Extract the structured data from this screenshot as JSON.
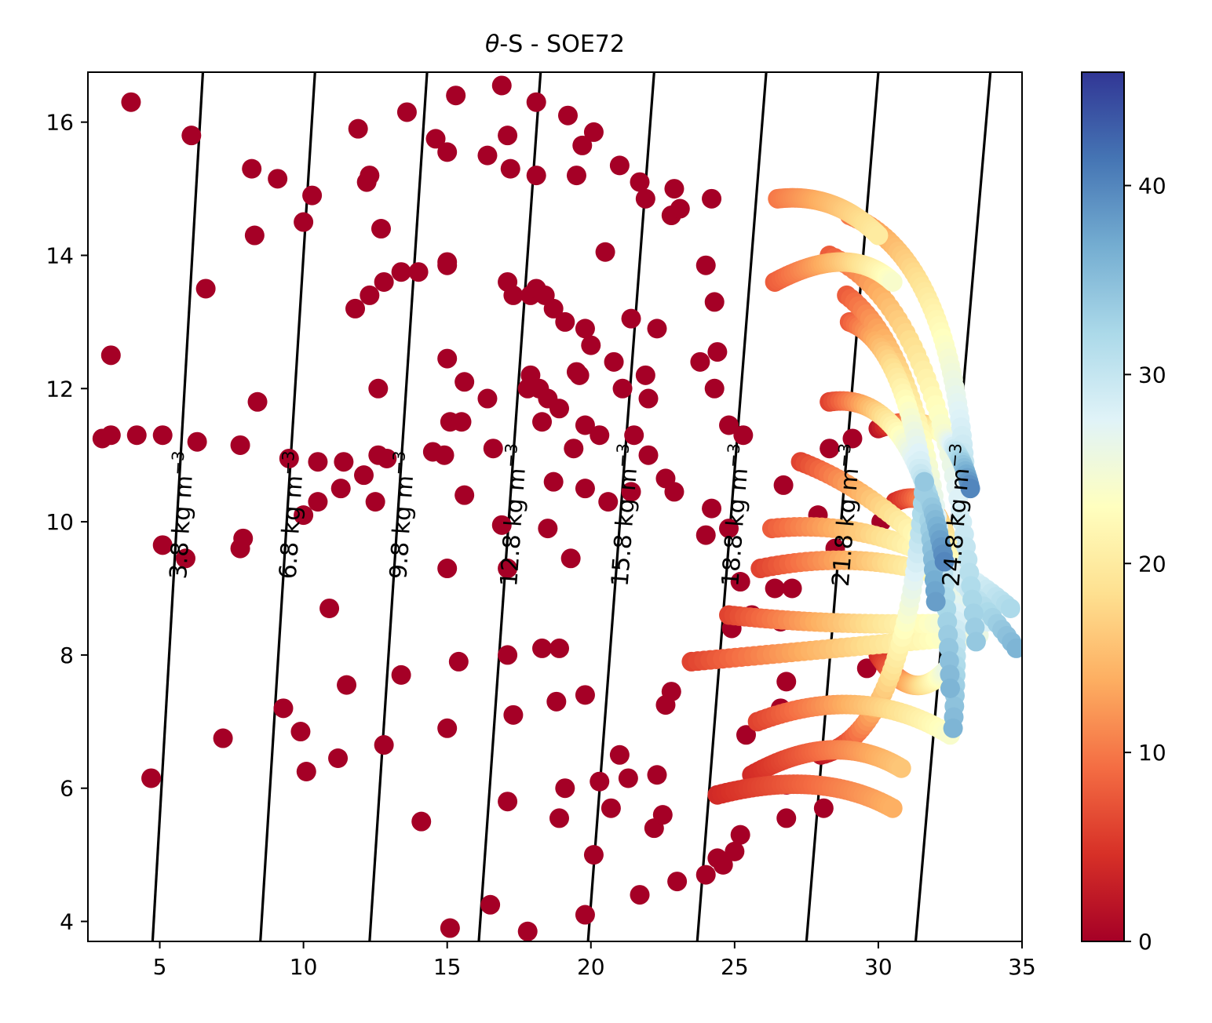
{
  "chart_data": {
    "type": "scatter",
    "title": "θ-S - SOE72",
    "title_symbol": "θ",
    "title_rest": "-S - SOE72",
    "xlim": [
      2.5,
      35.0
    ],
    "ylim": [
      3.7,
      16.75
    ],
    "x_ticks": [
      5,
      10,
      15,
      20,
      25,
      30,
      35
    ],
    "y_ticks": [
      4,
      6,
      8,
      10,
      12,
      14,
      16
    ],
    "colorbar": {
      "colormap": "RdYlBu",
      "range": [
        0,
        46
      ],
      "ticks": [
        0,
        10,
        20,
        30,
        40
      ],
      "colors": [
        "#a50026",
        "#d73027",
        "#f46d43",
        "#fdae61",
        "#fee090",
        "#ffffbf",
        "#e0f3f8",
        "#abd9e9",
        "#74add1",
        "#4575b4",
        "#313695"
      ]
    },
    "isopycnals": [
      {
        "label": "3.8 kg m",
        "points": [
          [
            4.75,
            3.7
          ],
          [
            6.5,
            16.75
          ]
        ]
      },
      {
        "label": "6.8 kg m",
        "points": [
          [
            8.5,
            3.7
          ],
          [
            10.4,
            16.75
          ]
        ]
      },
      {
        "label": "9.8 kg m",
        "points": [
          [
            12.3,
            3.7
          ],
          [
            14.3,
            16.75
          ]
        ]
      },
      {
        "label": "12.8 kg m",
        "points": [
          [
            16.1,
            3.7
          ],
          [
            18.25,
            16.75
          ]
        ]
      },
      {
        "label": "15.8 kg m",
        "points": [
          [
            19.9,
            3.7
          ],
          [
            22.2,
            16.75
          ]
        ]
      },
      {
        "label": "18.8 kg m",
        "points": [
          [
            23.7,
            3.7
          ],
          [
            26.1,
            16.75
          ]
        ]
      },
      {
        "label": "21.8 kg m",
        "points": [
          [
            27.5,
            3.7
          ],
          [
            30.0,
            16.75
          ]
        ]
      },
      {
        "label": "24.8 kg m",
        "points": [
          [
            31.3,
            3.7
          ],
          [
            33.9,
            16.75
          ]
        ]
      }
    ],
    "isopycnal_label_unit_exponent": "−3",
    "scatter_points": [
      [
        3.0,
        11.25,
        0
      ],
      [
        3.3,
        11.3,
        0
      ],
      [
        4.2,
        11.3,
        0
      ],
      [
        5.1,
        11.3,
        0
      ],
      [
        6.3,
        11.2,
        0
      ],
      [
        4.0,
        16.3,
        0
      ],
      [
        6.1,
        15.8,
        0
      ],
      [
        3.3,
        12.5,
        0
      ],
      [
        6.6,
        13.5,
        0
      ],
      [
        5.1,
        9.65,
        0
      ],
      [
        5.9,
        9.45,
        0
      ],
      [
        4.7,
        6.15,
        0
      ],
      [
        7.2,
        6.75,
        0
      ],
      [
        7.8,
        9.6,
        0
      ],
      [
        7.9,
        9.75,
        0
      ],
      [
        7.8,
        11.15,
        0
      ],
      [
        8.2,
        15.3,
        0
      ],
      [
        8.3,
        14.3,
        0
      ],
      [
        8.4,
        11.8,
        0
      ],
      [
        9.1,
        15.15,
        0
      ],
      [
        10.0,
        14.5,
        0
      ],
      [
        10.3,
        14.9,
        0
      ],
      [
        9.5,
        10.95,
        0
      ],
      [
        10.5,
        10.9,
        0
      ],
      [
        11.4,
        10.9,
        0
      ],
      [
        10.0,
        10.1,
        0
      ],
      [
        10.5,
        10.3,
        0
      ],
      [
        11.3,
        10.5,
        0
      ],
      [
        9.3,
        7.2,
        0
      ],
      [
        9.9,
        6.85,
        0
      ],
      [
        10.1,
        6.25,
        0
      ],
      [
        10.9,
        8.7,
        0
      ],
      [
        11.2,
        6.45,
        0
      ],
      [
        11.5,
        7.55,
        0
      ],
      [
        11.9,
        15.9,
        0
      ],
      [
        12.2,
        15.1,
        0
      ],
      [
        12.3,
        15.2,
        0
      ],
      [
        12.7,
        14.4,
        0
      ],
      [
        11.8,
        13.2,
        0
      ],
      [
        12.3,
        13.4,
        0
      ],
      [
        12.6,
        12.0,
        0
      ],
      [
        12.1,
        10.7,
        0
      ],
      [
        12.5,
        10.3,
        0
      ],
      [
        12.6,
        11.0,
        0
      ],
      [
        12.9,
        10.95,
        0
      ],
      [
        12.8,
        13.6,
        0
      ],
      [
        13.4,
        13.75,
        0
      ],
      [
        13.6,
        16.15,
        0
      ],
      [
        13.4,
        7.7,
        0
      ],
      [
        12.8,
        6.65,
        0
      ],
      [
        14.1,
        5.5,
        0
      ],
      [
        14.0,
        13.75,
        0
      ],
      [
        14.5,
        11.05,
        0
      ],
      [
        14.9,
        11.0,
        0
      ],
      [
        14.6,
        15.75,
        0
      ],
      [
        15.0,
        15.55,
        0
      ],
      [
        15.3,
        16.4,
        0
      ],
      [
        15.0,
        13.85,
        0
      ],
      [
        15.0,
        13.9,
        0
      ],
      [
        15.0,
        12.45,
        0
      ],
      [
        15.1,
        11.5,
        0
      ],
      [
        15.5,
        11.5,
        0
      ],
      [
        15.6,
        12.1,
        0
      ],
      [
        15.6,
        10.4,
        0
      ],
      [
        15.0,
        9.3,
        0
      ],
      [
        15.0,
        6.9,
        0
      ],
      [
        15.4,
        7.9,
        0
      ],
      [
        15.1,
        3.9,
        0
      ],
      [
        16.5,
        4.25,
        0
      ],
      [
        17.1,
        5.8,
        0
      ],
      [
        17.3,
        7.1,
        0
      ],
      [
        17.1,
        8.0,
        0
      ],
      [
        17.1,
        9.3,
        0
      ],
      [
        16.9,
        9.95,
        0
      ],
      [
        16.6,
        11.1,
        0
      ],
      [
        16.4,
        11.85,
        0
      ],
      [
        16.4,
        15.5,
        0
      ],
      [
        17.1,
        15.8,
        0
      ],
      [
        17.2,
        15.3,
        0
      ],
      [
        16.9,
        16.55,
        0
      ],
      [
        18.1,
        16.3,
        0
      ],
      [
        18.1,
        15.2,
        0
      ],
      [
        17.1,
        13.6,
        0
      ],
      [
        17.3,
        13.4,
        0
      ],
      [
        17.9,
        13.4,
        0
      ],
      [
        18.1,
        13.5,
        0
      ],
      [
        18.4,
        13.4,
        0
      ],
      [
        18.7,
        13.2,
        0
      ],
      [
        17.9,
        12.2,
        0
      ],
      [
        17.8,
        12.0,
        0
      ],
      [
        18.2,
        12.0,
        0
      ],
      [
        18.5,
        11.85,
        0
      ],
      [
        18.9,
        11.7,
        0
      ],
      [
        18.3,
        11.5,
        0
      ],
      [
        18.5,
        9.9,
        0
      ],
      [
        18.7,
        10.6,
        0
      ],
      [
        19.1,
        13.0,
        0
      ],
      [
        19.2,
        16.1,
        0
      ],
      [
        19.7,
        15.65,
        0
      ],
      [
        20.1,
        15.85,
        0
      ],
      [
        19.5,
        15.2,
        0
      ],
      [
        19.5,
        12.25,
        0
      ],
      [
        19.6,
        12.2,
        0
      ],
      [
        19.8,
        12.9,
        0
      ],
      [
        20.0,
        12.65,
        0
      ],
      [
        19.8,
        11.45,
        0
      ],
      [
        19.4,
        11.1,
        0
      ],
      [
        19.8,
        10.5,
        0
      ],
      [
        19.3,
        9.45,
        0
      ],
      [
        18.3,
        8.1,
        0
      ],
      [
        18.9,
        8.1,
        0
      ],
      [
        18.8,
        7.3,
        0
      ],
      [
        19.8,
        7.4,
        0
      ],
      [
        19.1,
        6.0,
        0
      ],
      [
        18.9,
        5.55,
        0
      ],
      [
        19.8,
        4.1,
        0
      ],
      [
        17.8,
        3.85,
        0
      ],
      [
        20.3,
        6.1,
        0
      ],
      [
        20.1,
        5.0,
        0
      ],
      [
        21.0,
        6.5,
        0
      ],
      [
        20.7,
        5.7,
        0
      ],
      [
        21.3,
        6.15,
        0
      ],
      [
        21.7,
        4.4,
        0
      ],
      [
        22.2,
        5.4,
        0
      ],
      [
        22.5,
        5.6,
        0
      ],
      [
        22.3,
        6.2,
        0
      ],
      [
        22.6,
        7.25,
        0
      ],
      [
        22.8,
        7.45,
        0
      ],
      [
        23.0,
        4.6,
        0
      ],
      [
        21.0,
        15.35,
        0
      ],
      [
        21.7,
        15.1,
        0
      ],
      [
        21.9,
        14.85,
        0
      ],
      [
        20.5,
        14.05,
        0
      ],
      [
        21.4,
        13.05,
        0
      ],
      [
        21.1,
        12.0,
        0
      ],
      [
        20.8,
        12.4,
        0
      ],
      [
        21.9,
        12.2,
        0
      ],
      [
        22.0,
        11.85,
        0
      ],
      [
        21.5,
        11.3,
        0
      ],
      [
        22.0,
        11.0,
        0
      ],
      [
        21.4,
        10.45,
        0
      ],
      [
        20.6,
        10.3,
        0
      ],
      [
        20.3,
        11.3,
        0
      ],
      [
        22.3,
        12.9,
        0
      ],
      [
        22.6,
        10.65,
        0
      ],
      [
        22.9,
        10.45,
        0
      ],
      [
        22.9,
        15.0,
        0
      ],
      [
        22.8,
        14.6,
        0
      ],
      [
        23.1,
        14.7,
        0
      ],
      [
        24.2,
        14.85,
        0
      ],
      [
        24.0,
        13.85,
        0
      ],
      [
        24.3,
        13.3,
        0
      ],
      [
        23.8,
        12.4,
        0
      ],
      [
        24.4,
        12.55,
        0
      ],
      [
        24.3,
        12.0,
        0
      ],
      [
        24.8,
        11.45,
        0
      ],
      [
        25.3,
        11.3,
        0
      ],
      [
        24.2,
        10.2,
        0
      ],
      [
        24.0,
        9.8,
        0
      ],
      [
        24.8,
        9.9,
        0
      ],
      [
        25.2,
        9.1,
        0
      ],
      [
        25.6,
        8.6,
        0
      ],
      [
        24.9,
        8.4,
        0
      ],
      [
        25.4,
        6.8,
        0
      ],
      [
        25.2,
        5.3,
        0
      ],
      [
        25.0,
        5.05,
        0
      ],
      [
        24.6,
        4.85,
        0
      ],
      [
        24.4,
        4.95,
        0
      ],
      [
        24.0,
        4.7,
        0
      ],
      [
        26.4,
        9.0,
        0
      ],
      [
        26.7,
        10.55,
        0
      ],
      [
        27.0,
        9.0,
        0
      ],
      [
        26.6,
        8.5,
        0
      ],
      [
        26.8,
        7.6,
        0
      ],
      [
        26.6,
        7.2,
        0
      ],
      [
        26.8,
        6.05,
        0
      ],
      [
        26.8,
        5.55,
        0
      ],
      [
        28.5,
        9.6,
        0
      ],
      [
        27.9,
        10.1,
        0
      ],
      [
        28.3,
        11.1,
        0
      ],
      [
        28.1,
        5.7,
        0
      ],
      [
        29.6,
        7.8,
        0
      ],
      [
        30.1,
        10.0,
        0
      ],
      [
        29.1,
        11.25,
        0
      ]
    ],
    "tracks": [
      {
        "cmin": 4,
        "cmax": 14,
        "start": [
          24.4,
          5.9
        ],
        "end": [
          30.5,
          5.7
        ],
        "bulge": [
          28.0,
          6.3
        ]
      },
      {
        "cmin": 4,
        "cmax": 16,
        "start": [
          25.6,
          6.2
        ],
        "end": [
          30.8,
          6.3
        ],
        "bulge": [
          28.5,
          6.9
        ]
      },
      {
        "cmin": 6,
        "cmax": 24,
        "start": [
          25.8,
          7.0
        ],
        "end": [
          32.5,
          6.8
        ],
        "bulge": [
          29.5,
          7.6
        ]
      },
      {
        "cmin": 6,
        "cmax": 26,
        "start": [
          23.5,
          7.9
        ],
        "end": [
          33.5,
          8.3
        ],
        "bulge": [
          28.5,
          8.1
        ]
      },
      {
        "cmin": 6,
        "cmax": 28,
        "start": [
          24.8,
          8.6
        ],
        "end": [
          33.8,
          8.5
        ],
        "bulge": [
          29.0,
          8.4
        ]
      },
      {
        "cmin": 6,
        "cmax": 30,
        "start": [
          25.9,
          9.3
        ],
        "end": [
          34.3,
          8.8
        ],
        "bulge": [
          30.5,
          9.7
        ]
      },
      {
        "cmin": 8,
        "cmax": 32,
        "start": [
          26.3,
          9.9
        ],
        "end": [
          34.6,
          8.7
        ],
        "bulge": [
          30.8,
          10.1
        ]
      },
      {
        "cmin": 6,
        "cmax": 36,
        "start": [
          27.3,
          10.9
        ],
        "end": [
          34.8,
          8.1
        ],
        "bulge": [
          31.0,
          10.3
        ]
      },
      {
        "cmin": 6,
        "cmax": 40,
        "start": [
          28.3,
          11.8
        ],
        "end": [
          32.3,
          9.4
        ],
        "bulge": [
          31.2,
          12.0
        ]
      },
      {
        "cmin": 8,
        "cmax": 38,
        "start": [
          29.0,
          13.0
        ],
        "end": [
          32.0,
          8.8
        ],
        "bulge": [
          31.5,
          12.6
        ]
      },
      {
        "cmin": 8,
        "cmax": 36,
        "start": [
          28.9,
          13.4
        ],
        "end": [
          32.5,
          7.5
        ],
        "bulge": [
          32.2,
          12.3
        ]
      },
      {
        "cmin": 8,
        "cmax": 34,
        "start": [
          28.3,
          14.0
        ],
        "end": [
          33.4,
          8.2
        ],
        "bulge": [
          32.5,
          13.2
        ]
      },
      {
        "cmin": 10,
        "cmax": 30,
        "start": [
          29.0,
          14.6
        ],
        "end": [
          33.0,
          10.9
        ],
        "bulge": [
          32.4,
          14.0
        ]
      },
      {
        "cmin": 8,
        "cmax": 24,
        "start": [
          26.4,
          13.6
        ],
        "end": [
          30.5,
          13.6
        ],
        "bulge": [
          29.0,
          14.2
        ]
      },
      {
        "cmin": 2,
        "cmax": 40,
        "start": [
          30.0,
          11.4
        ],
        "end": [
          33.2,
          10.5
        ],
        "bulge": [
          32.5,
          11.8
        ]
      },
      {
        "cmin": 4,
        "cmax": 36,
        "start": [
          30.6,
          10.3
        ],
        "end": [
          32.6,
          6.9
        ],
        "bulge": [
          33.2,
          10.8
        ]
      },
      {
        "cmin": 4,
        "cmax": 26,
        "start": [
          30.0,
          8.0
        ],
        "end": [
          32.4,
          7.8
        ],
        "bulge": [
          31.2,
          7.2
        ]
      },
      {
        "cmin": 10,
        "cmax": 20,
        "start": [
          26.5,
          14.85
        ],
        "end": [
          30.0,
          14.3
        ],
        "bulge": [
          28.5,
          14.95
        ]
      },
      {
        "cmin": 2,
        "cmax": 34,
        "start": [
          28.0,
          6.5
        ],
        "end": [
          31.6,
          10.6
        ],
        "bulge": [
          31.0,
          6.8
        ]
      }
    ]
  }
}
